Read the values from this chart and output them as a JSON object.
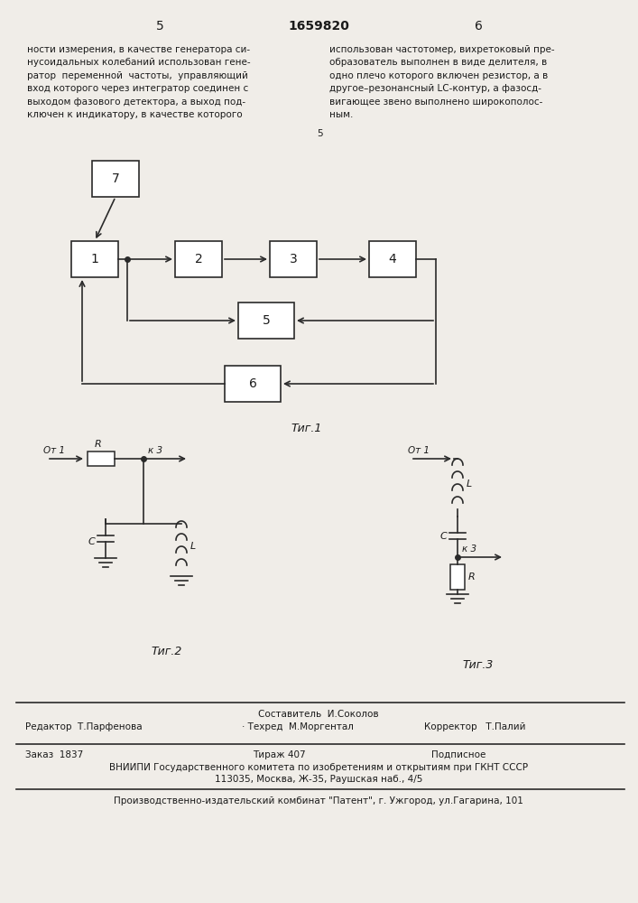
{
  "page_number_left": "5",
  "page_number_center": "1659820",
  "page_number_right": "6",
  "text_left": "ности измерения, в качестве генератора си-\nнусоидальных колебаний использован гене-\nратор  переменной  частоты,  управляющий\nвход которого через интегратор соединен с\nвыходом фазового детектора, а выход под-\nключен к индикатору, в качестве которого",
  "text_right": "использован частотомер, вихретоковый пре-\nобразователь выполнен в виде делителя, в\nодно плечо которого включен резистор, а в\nдругое–резонансный LC-контур, а фазосд-\nвигающее звено выполнено широкополос-\nным.",
  "fig1_label": "Τиг.1",
  "fig2_label": "Τиг.2",
  "fig3_label": "Τиг.3",
  "editor_line": "Составитель  И.Соколов",
  "editor_left": "Редактор  Т.Парфенова",
  "editor_mid": "· Техред  М.Моргентал",
  "editor_right": "Корректор   Т.Палий",
  "footer_order": "Заказ  1837",
  "footer_tirazh": "Тираж 407",
  "footer_podp": "Подписное",
  "footer_vniiipi": "ВНИИПИ Государственного комитета по изобретениям и открытиям при ГКНТ СССР",
  "footer_address": "113035, Москва, Ж-35, Раушская наб., 4/5",
  "footer_patent": "Производственно-издательский комбинат \"Патент\", г. Ужгород, ул.Гагарина, 101",
  "bg_color": "#f0ede8",
  "text_color": "#1a1a1a",
  "line_color": "#2a2a2a"
}
